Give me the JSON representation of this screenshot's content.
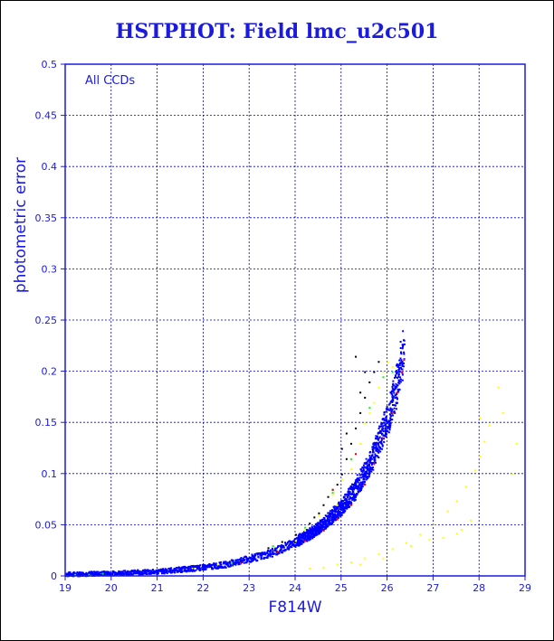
{
  "chart_data": {
    "type": "scatter",
    "title": "HSTPHOT: Field lmc_u2c501",
    "xlabel": "F814W",
    "ylabel": "photometric error",
    "annotation": "All CCDs",
    "xlim": [
      19,
      29
    ],
    "ylim": [
      0,
      0.5
    ],
    "x_ticks": [
      "19",
      "20",
      "21",
      "22",
      "23",
      "24",
      "25",
      "26",
      "27",
      "28",
      "29"
    ],
    "y_ticks": [
      "0",
      "0.05",
      "0.1",
      "0.15",
      "0.2",
      "0.25",
      "0.3",
      "0.35",
      "0.4",
      "0.45",
      "0.5"
    ],
    "grid": true,
    "colors": {
      "axis": "#1a1ae0",
      "grid": "#0000cc",
      "frame": "#000000"
    },
    "series": [
      {
        "color": "#ffff00",
        "points": [
          [
            24.3,
            0.008
          ],
          [
            24.6,
            0.009
          ],
          [
            24.9,
            0.012
          ],
          [
            25.2,
            0.014
          ],
          [
            25.5,
            0.018
          ],
          [
            25.8,
            0.022
          ],
          [
            26.1,
            0.027
          ],
          [
            26.4,
            0.033
          ],
          [
            26.7,
            0.041
          ],
          [
            27.0,
            0.051
          ],
          [
            27.3,
            0.064
          ],
          [
            27.5,
            0.074
          ],
          [
            27.7,
            0.088
          ],
          [
            27.9,
            0.104
          ],
          [
            28.0,
            0.118
          ],
          [
            28.1,
            0.132
          ],
          [
            28.2,
            0.148
          ],
          [
            28.0,
            0.155
          ],
          [
            28.4,
            0.185
          ],
          [
            28.5,
            0.16
          ],
          [
            28.7,
            0.1
          ],
          [
            28.8,
            0.13
          ],
          [
            26.5,
            0.03
          ],
          [
            26.9,
            0.036
          ],
          [
            27.2,
            0.038
          ],
          [
            27.5,
            0.042
          ],
          [
            27.6,
            0.046
          ],
          [
            27.8,
            0.055
          ],
          [
            25.4,
            0.012
          ],
          [
            25.9,
            0.018
          ],
          [
            24.0,
            0.035
          ],
          [
            24.2,
            0.045
          ],
          [
            24.5,
            0.06
          ],
          [
            24.8,
            0.08
          ],
          [
            25.0,
            0.095
          ],
          [
            25.2,
            0.105
          ],
          [
            25.4,
            0.13
          ],
          [
            25.5,
            0.15
          ],
          [
            25.7,
            0.17
          ],
          [
            25.8,
            0.185
          ],
          [
            25.9,
            0.2
          ],
          [
            26.0,
            0.21
          ],
          [
            26.1,
            0.205
          ],
          [
            25.6,
            0.16
          ],
          [
            25.3,
            0.12
          ],
          [
            24.9,
            0.07
          ],
          [
            22.3,
            0.012
          ],
          [
            21.8,
            0.008
          ]
        ]
      },
      {
        "color": "#000000",
        "points": [
          [
            23.4,
            0.028
          ],
          [
            23.7,
            0.034
          ],
          [
            24.0,
            0.041
          ],
          [
            24.3,
            0.052
          ],
          [
            24.5,
            0.062
          ],
          [
            24.7,
            0.078
          ],
          [
            24.9,
            0.09
          ],
          [
            25.0,
            0.1
          ],
          [
            25.1,
            0.115
          ],
          [
            25.2,
            0.13
          ],
          [
            25.3,
            0.145
          ],
          [
            25.4,
            0.16
          ],
          [
            25.5,
            0.175
          ],
          [
            25.6,
            0.19
          ],
          [
            25.7,
            0.2
          ],
          [
            25.8,
            0.21
          ],
          [
            25.3,
            0.215
          ],
          [
            25.5,
            0.2
          ],
          [
            25.1,
            0.14
          ],
          [
            24.8,
            0.085
          ],
          [
            24.6,
            0.07
          ],
          [
            24.4,
            0.058
          ],
          [
            25.0,
            0.125
          ],
          [
            25.4,
            0.18
          ]
        ]
      },
      {
        "color": "#00ff00",
        "points": [
          [
            19.2,
            0.002
          ],
          [
            19.5,
            0.002
          ],
          [
            19.8,
            0.003
          ],
          [
            22.6,
            0.013
          ],
          [
            23.5,
            0.03
          ],
          [
            24.2,
            0.048
          ],
          [
            24.8,
            0.082
          ],
          [
            25.2,
            0.115
          ],
          [
            25.6,
            0.165
          ],
          [
            25.9,
            0.195
          ],
          [
            26.1,
            0.2
          ]
        ]
      },
      {
        "color": "#ff0000",
        "points": [
          [
            22.8,
            0.013
          ],
          [
            23.6,
            0.024
          ],
          [
            24.2,
            0.035
          ],
          [
            24.6,
            0.045
          ],
          [
            24.9,
            0.056
          ],
          [
            25.2,
            0.07
          ],
          [
            25.5,
            0.09
          ],
          [
            25.7,
            0.11
          ],
          [
            25.9,
            0.135
          ],
          [
            26.1,
            0.16
          ],
          [
            26.2,
            0.18
          ],
          [
            26.3,
            0.2
          ],
          [
            26.35,
            0.212
          ],
          [
            24.8,
            0.085
          ],
          [
            25.3,
            0.12
          ]
        ]
      }
    ],
    "main_band": {
      "color": "#0000ff",
      "description_curve": "error rises exponentially with magnitude",
      "points": [
        [
          19.0,
          0.0015
        ],
        [
          20.0,
          0.0025
        ],
        [
          21.0,
          0.004
        ],
        [
          21.5,
          0.006
        ],
        [
          22.0,
          0.008
        ],
        [
          22.5,
          0.011
        ],
        [
          23.0,
          0.016
        ],
        [
          23.5,
          0.022
        ],
        [
          24.0,
          0.032
        ],
        [
          24.5,
          0.045
        ],
        [
          25.0,
          0.065
        ],
        [
          25.3,
          0.082
        ],
        [
          25.6,
          0.105
        ],
        [
          25.8,
          0.125
        ],
        [
          26.0,
          0.15
        ],
        [
          26.2,
          0.18
        ],
        [
          26.35,
          0.215
        ]
      ]
    }
  }
}
